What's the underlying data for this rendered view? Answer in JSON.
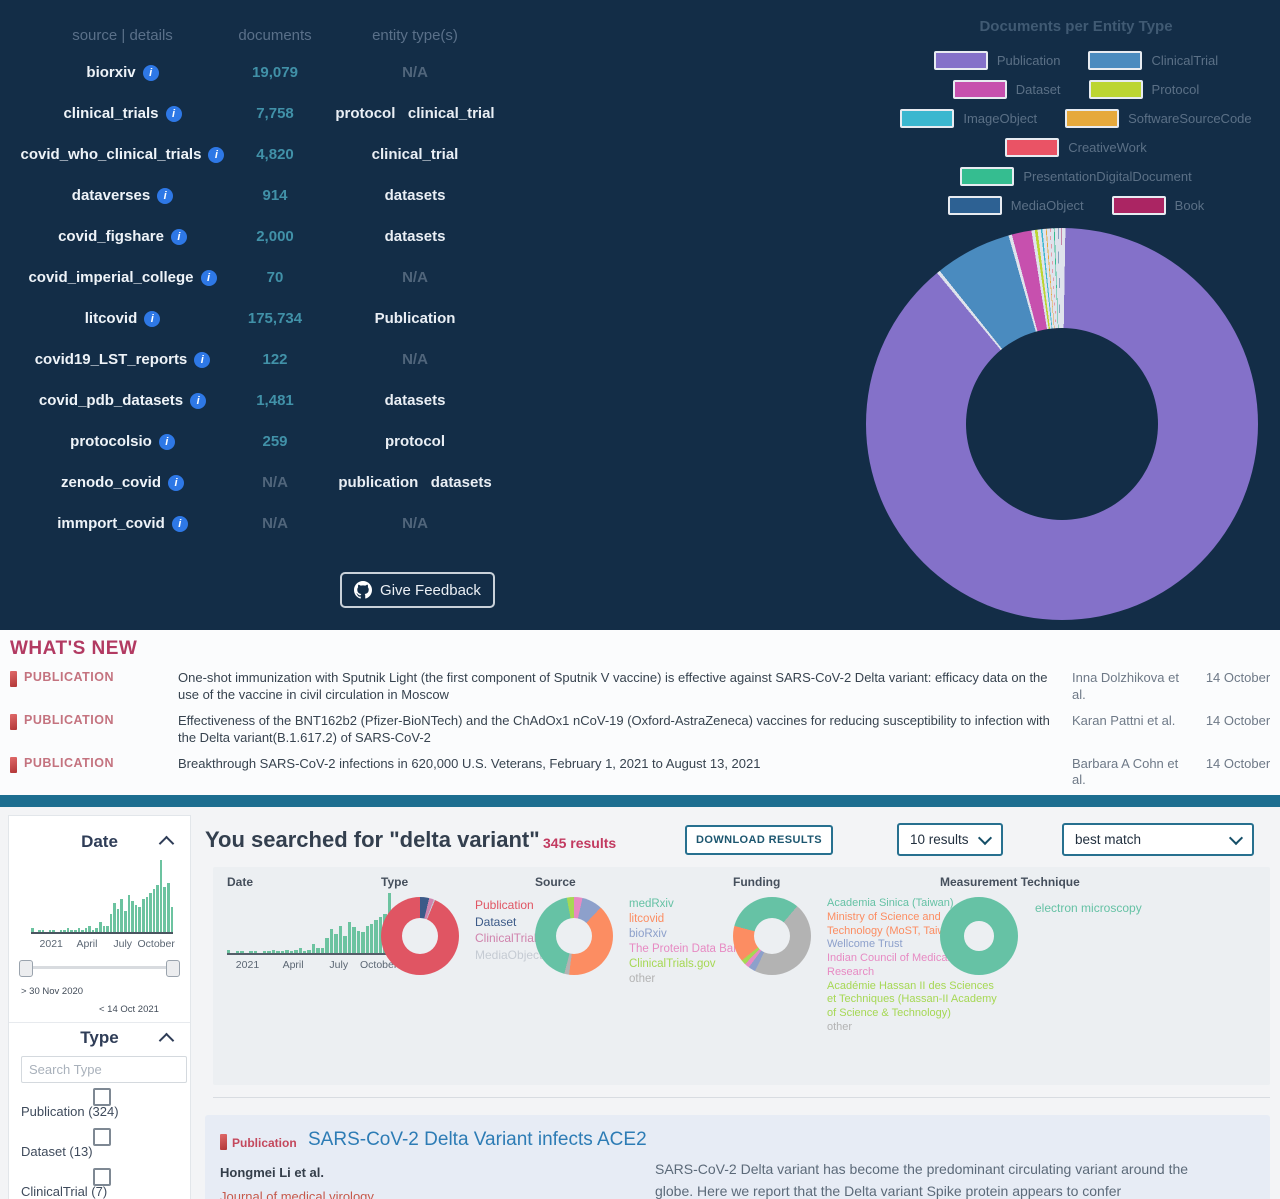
{
  "colors": {
    "top_background": "#132d47",
    "accent_teal_bar": "#1d6e90",
    "headline_crimson": "#b23a62",
    "result_link_blue": "#2d7cb5",
    "histogram_green": "#6cc3a0",
    "documents_count_teal": "#4191a8"
  },
  "sources_panel": {
    "headers": {
      "source": "source | details",
      "documents": "documents",
      "entity_types": "entity type(s)"
    },
    "rows": [
      {
        "source": "biorxiv",
        "documents": "19,079",
        "entity_types": "N/A"
      },
      {
        "source": "clinical_trials",
        "documents": "7,758",
        "entity_types": "protocol   clinical_trial"
      },
      {
        "source": "covid_who_clinical_trials",
        "documents": "4,820",
        "entity_types": "clinical_trial"
      },
      {
        "source": "dataverses",
        "documents": "914",
        "entity_types": "datasets"
      },
      {
        "source": "covid_figshare",
        "documents": "2,000",
        "entity_types": "datasets"
      },
      {
        "source": "covid_imperial_college",
        "documents": "70",
        "entity_types": "N/A"
      },
      {
        "source": "litcovid",
        "documents": "175,734",
        "entity_types": "Publication"
      },
      {
        "source": "covid19_LST_reports",
        "documents": "122",
        "entity_types": "N/A"
      },
      {
        "source": "covid_pdb_datasets",
        "documents": "1,481",
        "entity_types": "datasets"
      },
      {
        "source": "protocolsio",
        "documents": "259",
        "entity_types": "protocol"
      },
      {
        "source": "zenodo_covid",
        "documents": "N/A",
        "entity_types": "publication   datasets"
      },
      {
        "source": "immport_covid",
        "documents": "N/A",
        "entity_types": "N/A"
      }
    ]
  },
  "feedback": {
    "label": "Give Feedback"
  },
  "whats_new": {
    "heading": "WHAT'S NEW",
    "items": [
      {
        "badge": "PUBLICATION",
        "title": "One-shot immunization with Sputnik Light (the first component of Sputnik V vaccine) is effective against SARS-CoV-2 Delta variant: efficacy data on the use of the vaccine in civil circulation in Moscow",
        "authors": "Inna Dolzhikova et al.",
        "date": "14 October"
      },
      {
        "badge": "PUBLICATION",
        "title": "Effectiveness of the BNT162b2 (Pfizer-BioNTech) and the ChAdOx1 nCoV-19 (Oxford-AstraZeneca) vaccines for reducing susceptibility to infection with the Delta variant(B.1.617.2) of SARS-CoV-2",
        "authors": "Karan Pattni et al.",
        "date": "14 October"
      },
      {
        "badge": "PUBLICATION",
        "title": "Breakthrough SARS-CoV-2 infections in 620,000 U.S. Veterans, February 1, 2021 to August 13, 2021",
        "authors": "Barbara A Cohn et al.",
        "date": "14 October"
      }
    ]
  },
  "search_bar": {
    "title": "You searched for \"delta variant\"",
    "results_count": "345 results",
    "download_label": "DOWNLOAD RESULTS",
    "page_size": "10 results",
    "sort": "best match"
  },
  "sidebar": {
    "date": {
      "title": "Date",
      "range_min": "> 30 Nov 2020",
      "range_max": "< 14 Oct 2021"
    },
    "type": {
      "title": "Type",
      "search_placeholder": "Search Type",
      "options": [
        {
          "label": "Publication (324)"
        },
        {
          "label": "Dataset (13)"
        },
        {
          "label": "ClinicalTrial (7)"
        },
        {
          "label": ""
        }
      ]
    }
  },
  "result": {
    "badge": "Publication",
    "title": "SARS-CoV-2 Delta Variant infects ACE2",
    "authors": "Hongmei Li et al.",
    "journal": "Journal of medical virology",
    "abstract": "SARS-CoV-2 Delta variant has become the predominant circulating variant around the globe. Here we report that the Delta variant Spike protein appears to confer"
  },
  "chart_data": [
    {
      "id": "documents-per-entity-type",
      "type": "pie",
      "title": "Documents per Entity Type",
      "legend_position": "top",
      "stroke": "#dfe3ec",
      "slices": [
        {
          "label": "Publication",
          "color": "#8471c9",
          "value": 89.0
        },
        {
          "label": "ClinicalTrial",
          "color": "#4a8bbf",
          "value": 6.6
        },
        {
          "label": "Dataset",
          "color": "#c750ae",
          "value": 1.9
        },
        {
          "label": "Protocol",
          "color": "#bcd532",
          "value": 0.5
        },
        {
          "label": "ImageObject",
          "color": "#3bb7cf",
          "value": 0.4
        },
        {
          "label": "SoftwareSourceCode",
          "color": "#e6a93c",
          "value": 0.35
        },
        {
          "label": "CreativeWork",
          "color": "#ea5365",
          "value": 0.3
        },
        {
          "label": "PresentationDigitalDocument",
          "color": "#35bd90",
          "value": 0.35
        },
        {
          "label": "MediaObject",
          "color": "#2d6193",
          "value": 0.3
        },
        {
          "label": "Book",
          "color": "#ab2563",
          "value": 0.3
        }
      ]
    },
    {
      "id": "sidebar-date-histogram",
      "type": "bar",
      "color": "#6cc3a0",
      "ticks": [
        "2021",
        "April",
        "July",
        "October"
      ],
      "values": [
        2,
        0,
        1,
        1,
        0,
        1,
        1,
        0,
        1,
        1,
        2,
        1,
        1,
        2,
        1,
        2,
        3,
        1,
        2,
        5,
        3,
        3,
        9,
        14,
        11,
        16,
        10,
        18,
        15,
        13,
        12,
        16,
        17,
        19,
        21,
        23,
        35,
        22,
        24,
        12
      ]
    },
    {
      "id": "results-date-histogram",
      "type": "bar",
      "title": "Date",
      "color": "#6cc3a0",
      "ticks": [
        "2021",
        "April",
        "July",
        "October"
      ],
      "values": [
        2,
        0,
        1,
        1,
        0,
        1,
        1,
        0,
        1,
        1,
        2,
        1,
        1,
        2,
        1,
        2,
        3,
        1,
        2,
        5,
        3,
        3,
        9,
        14,
        11,
        16,
        10,
        18,
        15,
        13,
        12,
        16,
        17,
        19,
        21,
        23,
        35,
        22,
        24,
        12
      ]
    },
    {
      "id": "results-type-donut",
      "type": "pie",
      "title": "Type",
      "slices": [
        {
          "label": "Dataset",
          "color": "#3c5a88",
          "value": 3.8
        },
        {
          "label": "ClinicalTrial",
          "color": "#d083ad",
          "value": 2.0
        },
        {
          "label": "MediaObject",
          "color": "#c5cbd3",
          "value": 0.5
        },
        {
          "label": "Publication",
          "color": "#e05563",
          "value": 93.7
        }
      ]
    },
    {
      "id": "results-source-donut",
      "type": "pie",
      "title": "Source",
      "slices": [
        {
          "label": "The Protein Data Bank",
          "color": "#e78ac3",
          "value": 3.5
        },
        {
          "label": "bioRxiv",
          "color": "#8da0cb",
          "value": 8.5
        },
        {
          "label": "litcovid",
          "color": "#fc8d62",
          "value": 40
        },
        {
          "label": "other",
          "color": "#b3b3b3",
          "value": 2
        },
        {
          "label": "medRxiv",
          "color": "#66c2a5",
          "value": 43
        },
        {
          "label": "ClinicalTrials.gov",
          "color": "#a6d854",
          "value": 3
        }
      ]
    },
    {
      "id": "results-funding-donut",
      "type": "pie",
      "title": "Funding",
      "start": -75,
      "slices": [
        {
          "label": "Academia Sinica (Taiwan)",
          "color": "#66c2a5",
          "value": 32
        },
        {
          "label": "other",
          "color": "#b3b3b3",
          "value": 46
        },
        {
          "label": "Wellcome Trust",
          "color": "#8da0cb",
          "value": 3
        },
        {
          "label": "Indian Council of Medical Research",
          "color": "#e78ac3",
          "value": 2
        },
        {
          "label": "Académie Hassan II des Sciences et Techniques (Hassan-II Academy of Science & Technology)",
          "color": "#a6d854",
          "value": 2
        },
        {
          "label": "Ministry of Science and Technology (MoST, Taiwan)",
          "color": "#fc8d62",
          "value": 15
        }
      ]
    },
    {
      "id": "results-measurement-donut",
      "type": "pie",
      "title": "Measurement Technique",
      "slices": [
        {
          "label": "electron microscopy",
          "color": "#66c2a5",
          "value": 100
        }
      ]
    }
  ]
}
